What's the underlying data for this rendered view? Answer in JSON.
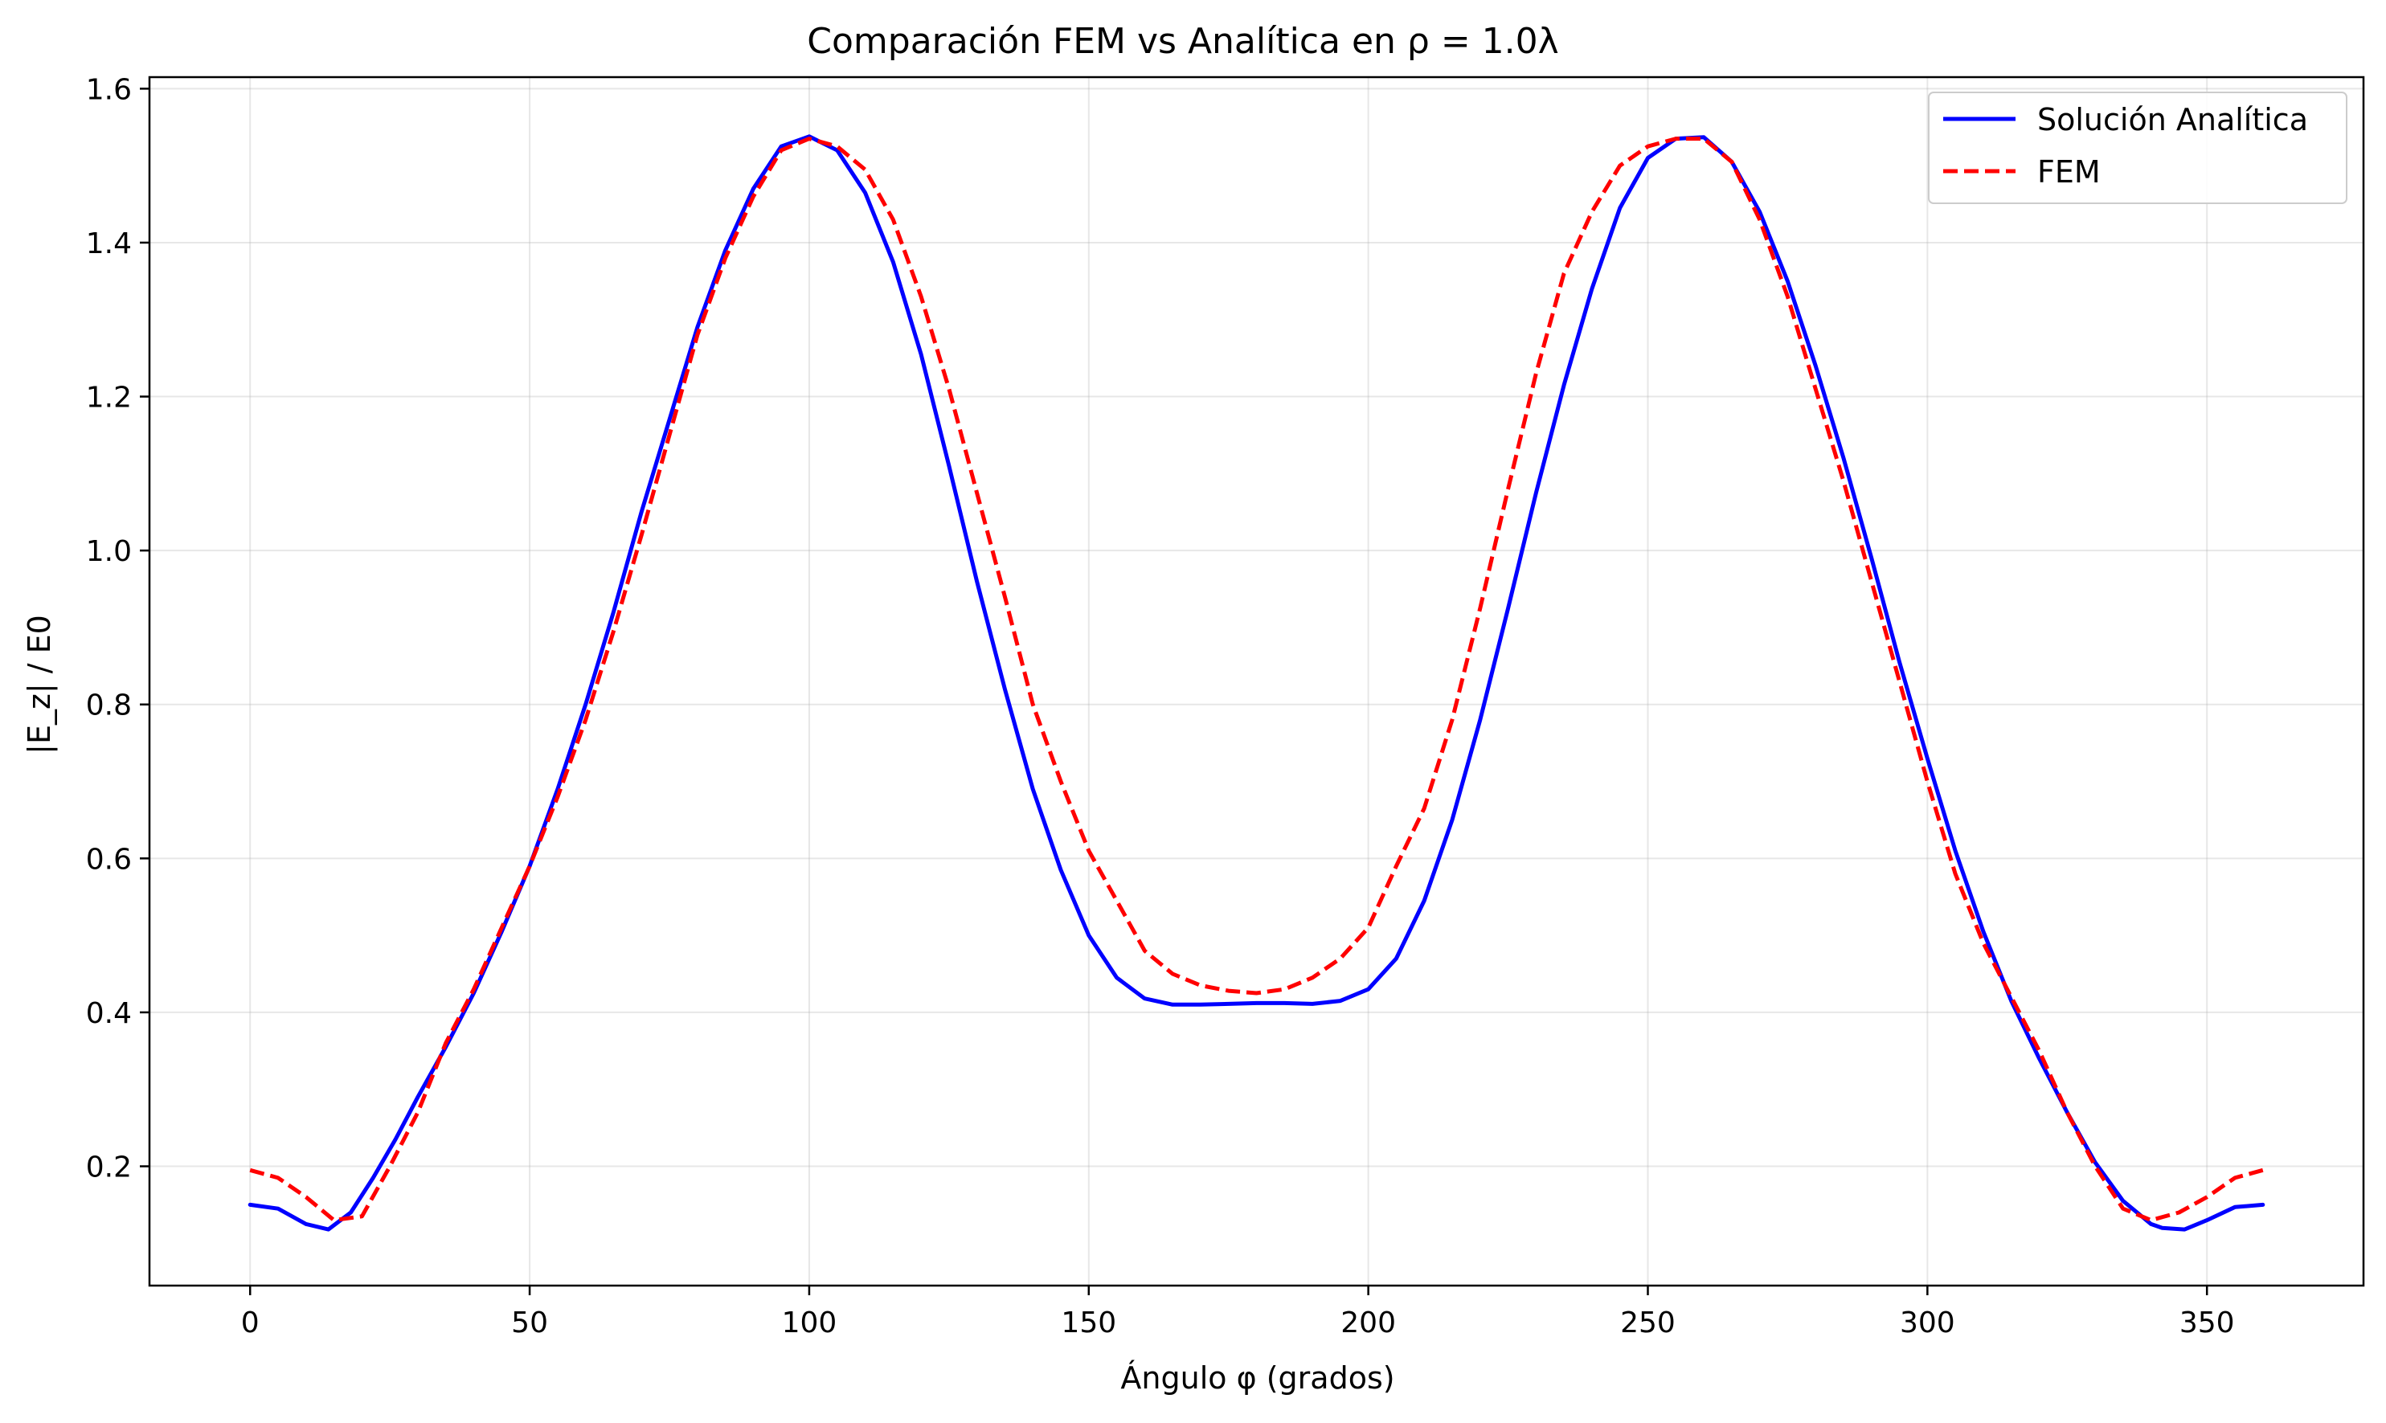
{
  "chart_data": {
    "type": "line",
    "title": "Comparación FEM vs Analítica en ρ = 1.0λ",
    "xlabel": "Ángulo φ (grados)",
    "ylabel": "|E_z| / E0",
    "xlim": [
      -18,
      378
    ],
    "ylim": [
      0.045,
      1.615
    ],
    "xticks": [
      0,
      50,
      100,
      150,
      200,
      250,
      300,
      350
    ],
    "xtick_labels": [
      "0",
      "50",
      "100",
      "150",
      "200",
      "250",
      "300",
      "350"
    ],
    "yticks": [
      0.2,
      0.4,
      0.6,
      0.8,
      1.0,
      1.2,
      1.4,
      1.6
    ],
    "ytick_labels": [
      "0.2",
      "0.4",
      "0.6",
      "0.8",
      "1.0",
      "1.2",
      "1.4",
      "1.6"
    ],
    "grid": true,
    "legend_position": "top-right",
    "series": [
      {
        "name": "Solución Analítica",
        "color": "#0000ff",
        "style": "solid",
        "x": [
          0,
          5,
          10,
          14,
          18,
          22,
          26,
          30,
          35,
          40,
          45,
          50,
          55,
          60,
          65,
          70,
          75,
          80,
          85,
          90,
          95,
          100,
          105,
          110,
          115,
          120,
          125,
          130,
          135,
          140,
          145,
          150,
          155,
          160,
          165,
          170,
          175,
          180,
          185,
          190,
          195,
          200,
          205,
          210,
          215,
          220,
          225,
          230,
          235,
          240,
          245,
          250,
          255,
          260,
          265,
          270,
          275,
          280,
          285,
          290,
          295,
          300,
          305,
          310,
          315,
          320,
          325,
          330,
          335,
          340,
          342,
          346,
          350,
          355,
          360
        ],
        "y": [
          0.15,
          0.145,
          0.125,
          0.118,
          0.14,
          0.185,
          0.235,
          0.29,
          0.355,
          0.425,
          0.505,
          0.59,
          0.69,
          0.8,
          0.92,
          1.05,
          1.17,
          1.29,
          1.39,
          1.47,
          1.525,
          1.538,
          1.52,
          1.465,
          1.375,
          1.255,
          1.11,
          0.96,
          0.82,
          0.69,
          0.585,
          0.5,
          0.445,
          0.418,
          0.41,
          0.41,
          0.411,
          0.412,
          0.412,
          0.411,
          0.415,
          0.43,
          0.47,
          0.545,
          0.65,
          0.78,
          0.925,
          1.075,
          1.215,
          1.34,
          1.445,
          1.51,
          1.535,
          1.537,
          1.505,
          1.44,
          1.35,
          1.24,
          1.12,
          0.99,
          0.855,
          0.73,
          0.61,
          0.505,
          0.415,
          0.34,
          0.27,
          0.205,
          0.155,
          0.125,
          0.12,
          0.118,
          0.13,
          0.147,
          0.15
        ]
      },
      {
        "name": "FEM",
        "color": "#ff0000",
        "style": "dashed",
        "x": [
          0,
          5,
          10,
          15,
          20,
          25,
          30,
          35,
          40,
          45,
          50,
          55,
          60,
          65,
          70,
          75,
          80,
          85,
          90,
          95,
          100,
          105,
          110,
          115,
          120,
          125,
          130,
          135,
          140,
          145,
          150,
          155,
          160,
          165,
          170,
          175,
          180,
          185,
          190,
          195,
          200,
          205,
          210,
          215,
          220,
          225,
          230,
          235,
          240,
          245,
          250,
          255,
          260,
          265,
          270,
          275,
          280,
          285,
          290,
          295,
          300,
          305,
          310,
          315,
          320,
          325,
          330,
          335,
          340,
          345,
          350,
          355,
          360
        ],
        "y": [
          0.195,
          0.185,
          0.16,
          0.13,
          0.135,
          0.2,
          0.27,
          0.36,
          0.43,
          0.51,
          0.59,
          0.68,
          0.78,
          0.895,
          1.02,
          1.15,
          1.28,
          1.38,
          1.46,
          1.52,
          1.535,
          1.525,
          1.495,
          1.43,
          1.33,
          1.21,
          1.075,
          0.94,
          0.8,
          0.7,
          0.61,
          0.545,
          0.48,
          0.45,
          0.435,
          0.428,
          0.425,
          0.43,
          0.445,
          0.47,
          0.51,
          0.59,
          0.665,
          0.78,
          0.925,
          1.08,
          1.23,
          1.36,
          1.44,
          1.5,
          1.525,
          1.535,
          1.535,
          1.505,
          1.43,
          1.33,
          1.21,
          1.09,
          0.96,
          0.83,
          0.7,
          0.58,
          0.49,
          0.42,
          0.35,
          0.27,
          0.2,
          0.145,
          0.13,
          0.14,
          0.16,
          0.185,
          0.195
        ]
      }
    ]
  }
}
